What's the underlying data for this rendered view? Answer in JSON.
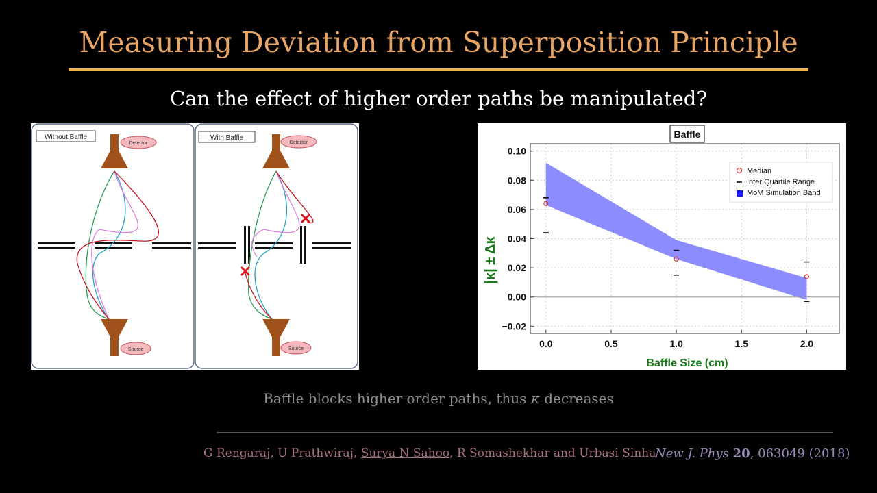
{
  "slide": {
    "title": "Measuring Deviation from Superposition Principle",
    "subtitle": "Can the effect of higher order paths be manipulated?",
    "caption_pre": "Baffle blocks higher order paths, thus ",
    "caption_symbol": "κ",
    "caption_post": " decreases",
    "citation": {
      "author_a": "G Rengaraj, U Prathwiraj, ",
      "author_b": "Surya N Sahoo",
      "author_c": ", R Somashekhar and Urbasi Sinha",
      "journal": "New J. Phys",
      "volume": "20",
      "rest": ", 063049 (2018)"
    }
  },
  "diagram": {
    "left_panel_label": "Without Baffle",
    "right_panel_label": "With Baffle",
    "detector_label": "Detector",
    "source_label": "Source"
  },
  "chart_data": {
    "type": "scatter",
    "title": "Baffle",
    "xlabel": "Baffle Size (cm)",
    "ylabel": "|κ| ± Δκ",
    "xlim": [
      -0.12,
      2.25
    ],
    "ylim": [
      -0.025,
      0.105
    ],
    "x_ticks": [
      "0.0",
      "0.5",
      "1.0",
      "1.5",
      "2.0"
    ],
    "y_ticks": [
      "−0.02",
      "0.00",
      "0.02",
      "0.04",
      "0.06",
      "0.08",
      "0.10"
    ],
    "x_tick_values": [
      0,
      0.5,
      1.0,
      1.5,
      2.0
    ],
    "y_tick_values": [
      -0.02,
      0,
      0.02,
      0.04,
      0.06,
      0.08,
      0.1
    ],
    "grid": true,
    "legend_placement": "top-right",
    "legend": [
      "Median",
      "Inter Quartile Range",
      "MoM Simulation Band"
    ],
    "median": {
      "x": [
        0,
        1,
        2
      ],
      "y": [
        0.064,
        0.026,
        0.014
      ]
    },
    "iqr": {
      "x": [
        0,
        1,
        2
      ],
      "low": [
        0.044,
        0.015,
        -0.003
      ],
      "high": [
        0.068,
        0.032,
        0.024
      ]
    },
    "band": {
      "x": [
        0,
        1,
        2
      ],
      "low": [
        0.063,
        0.026,
        -0.002
      ],
      "high": [
        0.092,
        0.039,
        0.013
      ]
    },
    "colors": {
      "band": "#8c8cff",
      "median": "#d33",
      "iqr": "#000",
      "axis_label": "#1a7a1a"
    }
  }
}
